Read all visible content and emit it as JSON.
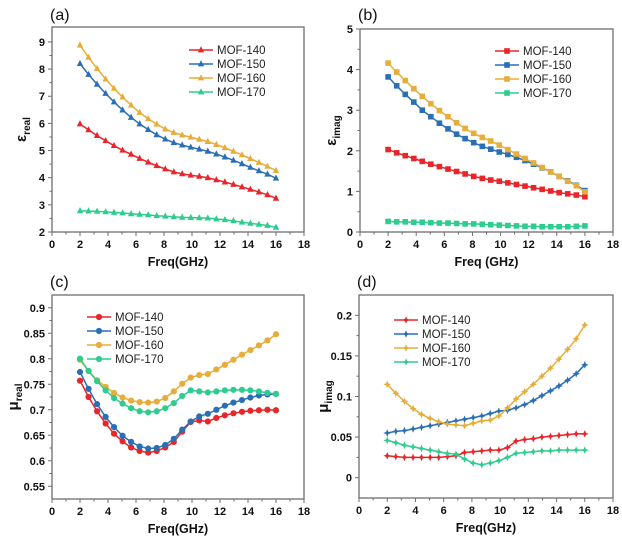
{
  "figure": {
    "series_colors": {
      "MOF-140": "#e8262a",
      "MOF-150": "#2a6fb5",
      "MOF-160": "#e6ad3a",
      "MOF-170": "#2ecc8f"
    }
  },
  "chart_data": [
    {
      "panel": "(a)",
      "type": "line",
      "marker": "triangle",
      "title": "",
      "xlabel": "Freq(GHz)",
      "ylabel": "ε_real",
      "ylabel_main": "ε",
      "ylabel_sub": "real",
      "xlim": [
        0,
        18
      ],
      "ylim": [
        2,
        9.55
      ],
      "xticks": [
        0,
        2,
        4,
        6,
        8,
        10,
        12,
        14,
        16,
        18
      ],
      "yticks": [
        2,
        3,
        4,
        5,
        6,
        7,
        8,
        9
      ],
      "legend_position": "top-right",
      "x": [
        2.0,
        2.61,
        3.22,
        3.83,
        4.43,
        5.04,
        5.65,
        6.26,
        6.87,
        7.48,
        8.09,
        8.7,
        9.3,
        9.91,
        10.52,
        11.13,
        11.74,
        12.35,
        12.96,
        13.57,
        14.17,
        14.78,
        15.39,
        16.0
      ],
      "series": [
        {
          "name": "MOF-140",
          "values": [
            5.98,
            5.76,
            5.55,
            5.36,
            5.18,
            5.01,
            4.86,
            4.71,
            4.57,
            4.44,
            4.32,
            4.21,
            4.14,
            4.09,
            4.05,
            4.0,
            3.92,
            3.84,
            3.75,
            3.66,
            3.57,
            3.47,
            3.37,
            3.24
          ]
        },
        {
          "name": "MOF-150",
          "values": [
            8.2,
            7.8,
            7.44,
            7.1,
            6.79,
            6.49,
            6.22,
            5.98,
            5.77,
            5.58,
            5.42,
            5.29,
            5.2,
            5.12,
            5.05,
            4.97,
            4.87,
            4.76,
            4.64,
            4.51,
            4.38,
            4.25,
            4.13,
            3.98
          ]
        },
        {
          "name": "MOF-160",
          "values": [
            8.88,
            8.43,
            8.02,
            7.63,
            7.29,
            6.97,
            6.67,
            6.4,
            6.17,
            5.97,
            5.79,
            5.66,
            5.57,
            5.49,
            5.41,
            5.33,
            5.22,
            5.1,
            4.97,
            4.84,
            4.7,
            4.56,
            4.42,
            4.26
          ]
        },
        {
          "name": "MOF-170",
          "values": [
            2.78,
            2.77,
            2.76,
            2.74,
            2.72,
            2.7,
            2.67,
            2.65,
            2.63,
            2.6,
            2.58,
            2.56,
            2.54,
            2.53,
            2.52,
            2.51,
            2.48,
            2.45,
            2.41,
            2.36,
            2.32,
            2.28,
            2.24,
            2.17
          ]
        }
      ]
    },
    {
      "panel": "(b)",
      "type": "line",
      "marker": "square",
      "title": "",
      "xlabel": "Freq (GHz)",
      "ylabel": "ε_imag",
      "ylabel_main": "ε",
      "ylabel_sub": "imag",
      "xlim": [
        0,
        18
      ],
      "ylim": [
        0,
        5
      ],
      "xticks": [
        0,
        2,
        4,
        6,
        8,
        10,
        12,
        14,
        16,
        18
      ],
      "yticks": [
        0,
        1,
        2,
        3,
        4,
        5
      ],
      "legend_position": "top-right",
      "x": [
        2.0,
        2.61,
        3.22,
        3.83,
        4.43,
        5.04,
        5.65,
        6.26,
        6.87,
        7.48,
        8.09,
        8.7,
        9.3,
        9.91,
        10.52,
        11.13,
        11.74,
        12.35,
        12.96,
        13.57,
        14.17,
        14.78,
        15.39,
        16.0
      ],
      "series": [
        {
          "name": "MOF-140",
          "values": [
            2.03,
            1.95,
            1.88,
            1.81,
            1.74,
            1.67,
            1.61,
            1.55,
            1.49,
            1.43,
            1.37,
            1.32,
            1.28,
            1.25,
            1.21,
            1.17,
            1.13,
            1.09,
            1.05,
            1.01,
            0.97,
            0.94,
            0.91,
            0.87
          ]
        },
        {
          "name": "MOF-150",
          "values": [
            3.82,
            3.6,
            3.39,
            3.2,
            3.0,
            2.84,
            2.68,
            2.54,
            2.41,
            2.3,
            2.2,
            2.11,
            2.04,
            1.97,
            1.91,
            1.84,
            1.76,
            1.67,
            1.58,
            1.48,
            1.37,
            1.26,
            1.15,
            1.02
          ]
        },
        {
          "name": "MOF-160",
          "values": [
            4.16,
            3.94,
            3.73,
            3.53,
            3.34,
            3.16,
            2.99,
            2.84,
            2.69,
            2.55,
            2.43,
            2.33,
            2.24,
            2.14,
            2.03,
            1.92,
            1.81,
            1.7,
            1.59,
            1.48,
            1.37,
            1.25,
            1.14,
            0.99
          ]
        },
        {
          "name": "MOF-170",
          "values": [
            0.26,
            0.25,
            0.25,
            0.24,
            0.24,
            0.23,
            0.22,
            0.22,
            0.21,
            0.2,
            0.2,
            0.19,
            0.18,
            0.17,
            0.16,
            0.15,
            0.14,
            0.14,
            0.13,
            0.13,
            0.13,
            0.13,
            0.14,
            0.15
          ]
        }
      ]
    },
    {
      "panel": "(c)",
      "type": "line",
      "marker": "circle",
      "title": "",
      "xlabel": "Freq(GHz)",
      "ylabel": "μ_real",
      "ylabel_main": "μ",
      "ylabel_sub": "real",
      "xlim": [
        0,
        18
      ],
      "ylim": [
        0.525,
        0.925
      ],
      "xticks": [
        0,
        2,
        4,
        6,
        8,
        10,
        12,
        14,
        16,
        18
      ],
      "yticks": [
        0.55,
        0.6,
        0.65,
        0.7,
        0.75,
        0.8,
        0.85,
        0.9
      ],
      "ytick_labels": [
        "0.55",
        "0.6",
        "0.65",
        "0.7",
        "0.75",
        "0.8",
        "0.85",
        "0.9"
      ],
      "legend_position": "top-left",
      "x": [
        2.0,
        2.61,
        3.22,
        3.83,
        4.43,
        5.04,
        5.65,
        6.26,
        6.87,
        7.48,
        8.09,
        8.7,
        9.3,
        9.91,
        10.52,
        11.13,
        11.74,
        12.35,
        12.96,
        13.57,
        14.17,
        14.78,
        15.39,
        16.0
      ],
      "series": [
        {
          "name": "MOF-140",
          "values": [
            0.757,
            0.725,
            0.697,
            0.673,
            0.653,
            0.638,
            0.626,
            0.619,
            0.616,
            0.619,
            0.626,
            0.637,
            0.657,
            0.676,
            0.679,
            0.677,
            0.684,
            0.689,
            0.693,
            0.696,
            0.698,
            0.699,
            0.7,
            0.699
          ]
        },
        {
          "name": "MOF-150",
          "values": [
            0.774,
            0.741,
            0.711,
            0.686,
            0.666,
            0.649,
            0.637,
            0.628,
            0.624,
            0.625,
            0.631,
            0.643,
            0.661,
            0.677,
            0.687,
            0.692,
            0.7,
            0.708,
            0.714,
            0.719,
            0.724,
            0.728,
            0.73,
            0.731
          ]
        },
        {
          "name": "MOF-160",
          "values": [
            0.798,
            0.776,
            0.758,
            0.745,
            0.733,
            0.724,
            0.718,
            0.715,
            0.714,
            0.716,
            0.723,
            0.736,
            0.751,
            0.763,
            0.768,
            0.77,
            0.779,
            0.788,
            0.798,
            0.808,
            0.817,
            0.826,
            0.836,
            0.848
          ]
        },
        {
          "name": "MOF-170",
          "values": [
            0.8,
            0.776,
            0.756,
            0.738,
            0.723,
            0.712,
            0.703,
            0.697,
            0.695,
            0.697,
            0.703,
            0.713,
            0.727,
            0.738,
            0.736,
            0.734,
            0.736,
            0.738,
            0.739,
            0.739,
            0.738,
            0.736,
            0.733,
            0.731
          ]
        }
      ]
    },
    {
      "panel": "(d)",
      "type": "line",
      "marker": "star",
      "title": "",
      "xlabel": "Freq(GHz)",
      "ylabel": "μ_imag",
      "ylabel_main": "μ",
      "ylabel_sub": "imag",
      "xlim": [
        0,
        18
      ],
      "ylim": [
        -0.025,
        0.225
      ],
      "xticks": [
        0,
        2,
        4,
        6,
        8,
        10,
        12,
        14,
        16,
        18
      ],
      "yticks": [
        0,
        0.05,
        0.1,
        0.15,
        0.2
      ],
      "ytick_labels": [
        "0",
        "0.05",
        "0.1",
        "0.15",
        "0.2"
      ],
      "legend_position": "top-left",
      "x": [
        2.0,
        2.61,
        3.22,
        3.83,
        4.43,
        5.04,
        5.65,
        6.26,
        6.87,
        7.48,
        8.09,
        8.7,
        9.3,
        9.91,
        10.52,
        11.13,
        11.74,
        12.35,
        12.96,
        13.57,
        14.17,
        14.78,
        15.39,
        16.0
      ],
      "series": [
        {
          "name": "MOF-140",
          "values": [
            0.027,
            0.026,
            0.025,
            0.025,
            0.025,
            0.025,
            0.025,
            0.026,
            0.027,
            0.031,
            0.032,
            0.033,
            0.034,
            0.034,
            0.037,
            0.045,
            0.047,
            0.048,
            0.05,
            0.051,
            0.052,
            0.053,
            0.054,
            0.054
          ]
        },
        {
          "name": "MOF-150",
          "values": [
            0.055,
            0.057,
            0.058,
            0.06,
            0.062,
            0.064,
            0.066,
            0.068,
            0.07,
            0.072,
            0.074,
            0.076,
            0.079,
            0.082,
            0.083,
            0.086,
            0.09,
            0.095,
            0.101,
            0.107,
            0.113,
            0.12,
            0.128,
            0.139
          ]
        },
        {
          "name": "MOF-160",
          "values": [
            0.115,
            0.104,
            0.094,
            0.085,
            0.078,
            0.073,
            0.069,
            0.066,
            0.065,
            0.064,
            0.067,
            0.07,
            0.071,
            0.076,
            0.086,
            0.097,
            0.106,
            0.115,
            0.125,
            0.135,
            0.146,
            0.158,
            0.171,
            0.188
          ]
        },
        {
          "name": "MOF-170",
          "values": [
            0.046,
            0.043,
            0.04,
            0.038,
            0.036,
            0.034,
            0.032,
            0.03,
            0.029,
            0.023,
            0.018,
            0.016,
            0.018,
            0.021,
            0.025,
            0.03,
            0.031,
            0.032,
            0.033,
            0.033,
            0.034,
            0.034,
            0.034,
            0.034
          ]
        }
      ]
    }
  ]
}
